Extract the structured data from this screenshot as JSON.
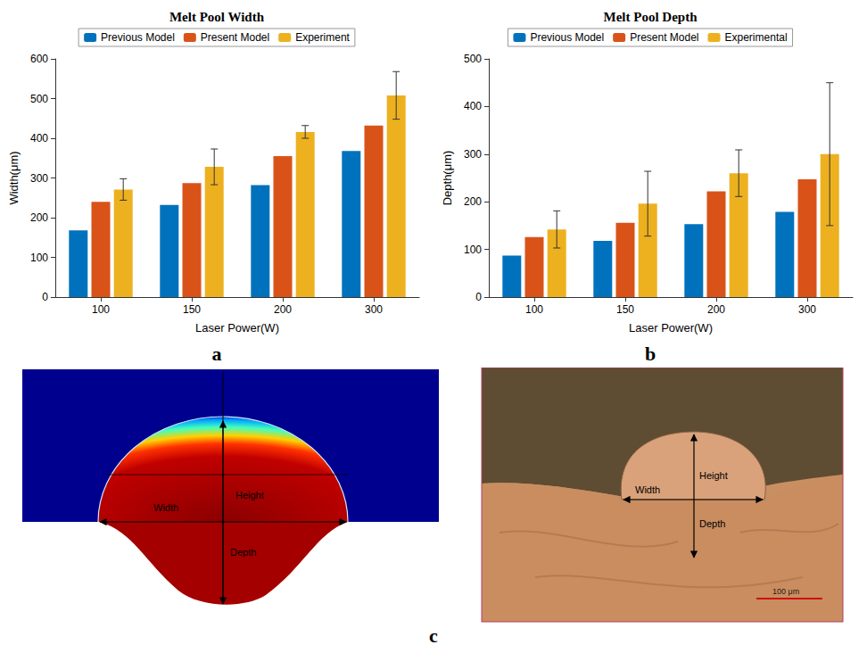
{
  "chart_data": [
    {
      "type": "bar",
      "title": "Melt Pool Width",
      "x_label": "Laser Power(W)",
      "y_label": "Width(μm)",
      "categories": [
        "100",
        "150",
        "200",
        "300"
      ],
      "series": [
        {
          "name": "Previous Model",
          "color": "#0072BD",
          "values": [
            168,
            232,
            282,
            368
          ]
        },
        {
          "name": "Present Model",
          "color": "#D95319",
          "values": [
            240,
            287,
            355,
            432
          ]
        },
        {
          "name": "Experiment",
          "color": "#EDB120",
          "values": [
            271,
            328,
            416,
            508
          ],
          "errors": [
            27,
            45,
            16,
            60
          ]
        }
      ],
      "ylim": [
        0,
        600
      ],
      "yticks": [
        0,
        100,
        200,
        300,
        400,
        500,
        600
      ],
      "grid": false,
      "legend": "top"
    },
    {
      "type": "bar",
      "title": "Melt Pool Depth",
      "x_label": "Laser Power(W)",
      "y_label": "Depth(μm)",
      "categories": [
        "100",
        "150",
        "200",
        "300"
      ],
      "series": [
        {
          "name": "Previous Model",
          "color": "#0072BD",
          "values": [
            87,
            118,
            153,
            179
          ]
        },
        {
          "name": "Present Model",
          "color": "#D95319",
          "values": [
            126,
            156,
            222,
            247
          ]
        },
        {
          "name": "Experimental",
          "color": "#EDB120",
          "values": [
            142,
            196,
            260,
            300
          ],
          "errors": [
            39,
            68,
            49,
            150
          ]
        }
      ],
      "ylim": [
        0,
        500
      ],
      "yticks": [
        0,
        100,
        200,
        300,
        400,
        500
      ],
      "grid": false,
      "legend": "top"
    }
  ],
  "panel_labels": [
    "a",
    "b",
    "c"
  ],
  "panel_c": {
    "simulation": {
      "labels": [
        "Width",
        "Height",
        "Depth"
      ]
    },
    "micrograph": {
      "labels": [
        "Width",
        "Height",
        "Depth"
      ],
      "scale_bar": "100 μm"
    }
  }
}
